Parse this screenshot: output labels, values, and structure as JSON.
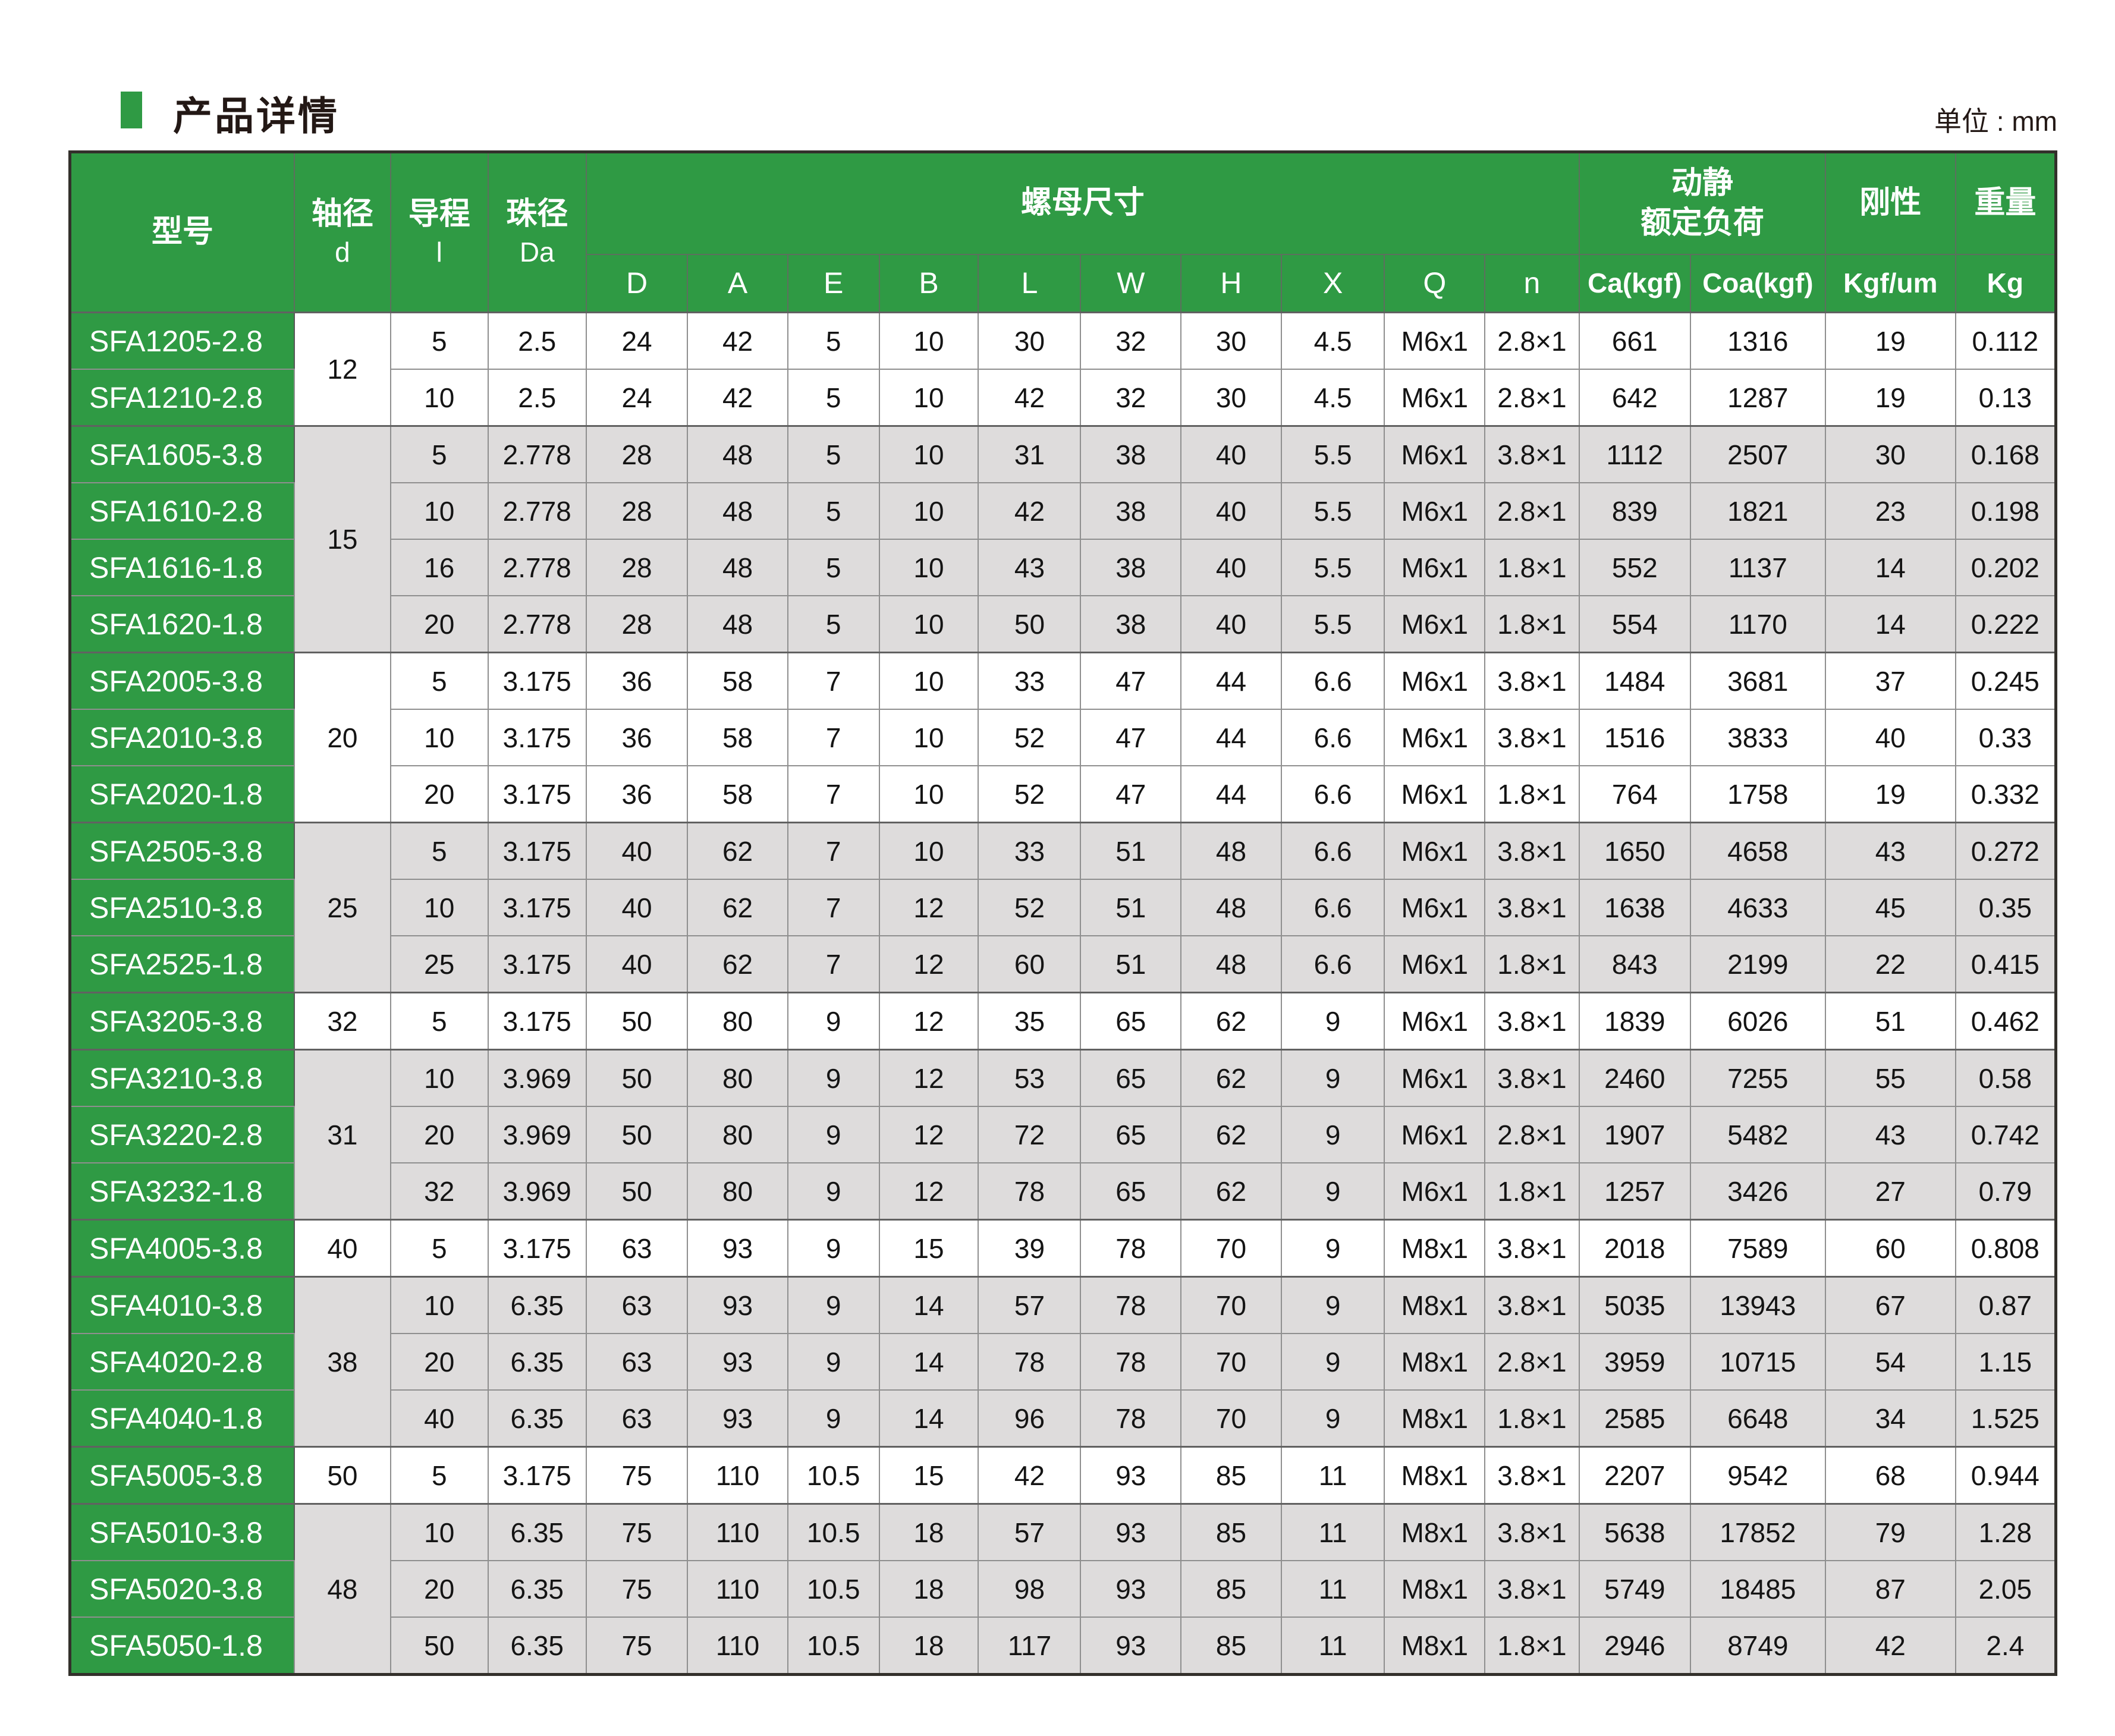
{
  "page": {
    "title": "产品详情",
    "unit_label": "单位 : mm"
  },
  "colors": {
    "brand_green": "#2f9a44",
    "row_gray": "#dedcdc",
    "row_white": "#ffffff",
    "outer_border": "#33302b",
    "grid_line": "#8f8f8f",
    "title_text": "#231815"
  },
  "table": {
    "headers": {
      "model": "型号",
      "shaft": {
        "line1": "轴径",
        "line2": "d"
      },
      "lead": {
        "line1": "导程",
        "line2": "l"
      },
      "ball": {
        "line1": "珠径",
        "line2": "Da"
      },
      "nut_group": "螺母尺寸",
      "nut_cols": [
        "D",
        "A",
        "E",
        "B",
        "L",
        "W",
        "H",
        "X",
        "Q",
        "n"
      ],
      "load_group": {
        "line1": "动静",
        "line2": "额定负荷"
      },
      "load_cols": [
        "Ca(kgf)",
        "Coa(kgf)"
      ],
      "rigidity": {
        "group": "刚性",
        "sub": "Kgf/um"
      },
      "weight": {
        "group": "重量",
        "sub": "Kg"
      }
    },
    "groups": [
      {
        "shaft_d": "12",
        "shade": "white",
        "rows": [
          {
            "model": "SFA1205-2.8",
            "lead": "5",
            "ball_dia": "2.5",
            "D": "24",
            "A": "42",
            "E": "5",
            "B": "10",
            "L": "30",
            "W": "32",
            "H": "30",
            "X": "4.5",
            "Q": "M6x1",
            "n": "2.8×1",
            "Ca": "661",
            "Coa": "1316",
            "rigidity": "19",
            "weight": "0.112"
          },
          {
            "model": "SFA1210-2.8",
            "lead": "10",
            "ball_dia": "2.5",
            "D": "24",
            "A": "42",
            "E": "5",
            "B": "10",
            "L": "42",
            "W": "32",
            "H": "30",
            "X": "4.5",
            "Q": "M6x1",
            "n": "2.8×1",
            "Ca": "642",
            "Coa": "1287",
            "rigidity": "19",
            "weight": "0.13"
          }
        ]
      },
      {
        "shaft_d": "15",
        "shade": "gray",
        "rows": [
          {
            "model": "SFA1605-3.8",
            "lead": "5",
            "ball_dia": "2.778",
            "D": "28",
            "A": "48",
            "E": "5",
            "B": "10",
            "L": "31",
            "W": "38",
            "H": "40",
            "X": "5.5",
            "Q": "M6x1",
            "n": "3.8×1",
            "Ca": "1112",
            "Coa": "2507",
            "rigidity": "30",
            "weight": "0.168"
          },
          {
            "model": "SFA1610-2.8",
            "lead": "10",
            "ball_dia": "2.778",
            "D": "28",
            "A": "48",
            "E": "5",
            "B": "10",
            "L": "42",
            "W": "38",
            "H": "40",
            "X": "5.5",
            "Q": "M6x1",
            "n": "2.8×1",
            "Ca": "839",
            "Coa": "1821",
            "rigidity": "23",
            "weight": "0.198"
          },
          {
            "model": "SFA1616-1.8",
            "lead": "16",
            "ball_dia": "2.778",
            "D": "28",
            "A": "48",
            "E": "5",
            "B": "10",
            "L": "43",
            "W": "38",
            "H": "40",
            "X": "5.5",
            "Q": "M6x1",
            "n": "1.8×1",
            "Ca": "552",
            "Coa": "1137",
            "rigidity": "14",
            "weight": "0.202"
          },
          {
            "model": "SFA1620-1.8",
            "lead": "20",
            "ball_dia": "2.778",
            "D": "28",
            "A": "48",
            "E": "5",
            "B": "10",
            "L": "50",
            "W": "38",
            "H": "40",
            "X": "5.5",
            "Q": "M6x1",
            "n": "1.8×1",
            "Ca": "554",
            "Coa": "1170",
            "rigidity": "14",
            "weight": "0.222"
          }
        ]
      },
      {
        "shaft_d": "20",
        "shade": "white",
        "rows": [
          {
            "model": "SFA2005-3.8",
            "lead": "5",
            "ball_dia": "3.175",
            "D": "36",
            "A": "58",
            "E": "7",
            "B": "10",
            "L": "33",
            "W": "47",
            "H": "44",
            "X": "6.6",
            "Q": "M6x1",
            "n": "3.8×1",
            "Ca": "1484",
            "Coa": "3681",
            "rigidity": "37",
            "weight": "0.245"
          },
          {
            "model": "SFA2010-3.8",
            "lead": "10",
            "ball_dia": "3.175",
            "D": "36",
            "A": "58",
            "E": "7",
            "B": "10",
            "L": "52",
            "W": "47",
            "H": "44",
            "X": "6.6",
            "Q": "M6x1",
            "n": "3.8×1",
            "Ca": "1516",
            "Coa": "3833",
            "rigidity": "40",
            "weight": "0.33"
          },
          {
            "model": "SFA2020-1.8",
            "lead": "20",
            "ball_dia": "3.175",
            "D": "36",
            "A": "58",
            "E": "7",
            "B": "10",
            "L": "52",
            "W": "47",
            "H": "44",
            "X": "6.6",
            "Q": "M6x1",
            "n": "1.8×1",
            "Ca": "764",
            "Coa": "1758",
            "rigidity": "19",
            "weight": "0.332"
          }
        ]
      },
      {
        "shaft_d": "25",
        "shade": "gray",
        "rows": [
          {
            "model": "SFA2505-3.8",
            "lead": "5",
            "ball_dia": "3.175",
            "D": "40",
            "A": "62",
            "E": "7",
            "B": "10",
            "L": "33",
            "W": "51",
            "H": "48",
            "X": "6.6",
            "Q": "M6x1",
            "n": "3.8×1",
            "Ca": "1650",
            "Coa": "4658",
            "rigidity": "43",
            "weight": "0.272"
          },
          {
            "model": "SFA2510-3.8",
            "lead": "10",
            "ball_dia": "3.175",
            "D": "40",
            "A": "62",
            "E": "7",
            "B": "12",
            "L": "52",
            "W": "51",
            "H": "48",
            "X": "6.6",
            "Q": "M6x1",
            "n": "3.8×1",
            "Ca": "1638",
            "Coa": "4633",
            "rigidity": "45",
            "weight": "0.35"
          },
          {
            "model": "SFA2525-1.8",
            "lead": "25",
            "ball_dia": "3.175",
            "D": "40",
            "A": "62",
            "E": "7",
            "B": "12",
            "L": "60",
            "W": "51",
            "H": "48",
            "X": "6.6",
            "Q": "M6x1",
            "n": "1.8×1",
            "Ca": "843",
            "Coa": "2199",
            "rigidity": "22",
            "weight": "0.415"
          }
        ]
      },
      {
        "shaft_d": "32",
        "shade": "white",
        "rows": [
          {
            "model": "SFA3205-3.8",
            "lead": "5",
            "ball_dia": "3.175",
            "D": "50",
            "A": "80",
            "E": "9",
            "B": "12",
            "L": "35",
            "W": "65",
            "H": "62",
            "X": "9",
            "Q": "M6x1",
            "n": "3.8×1",
            "Ca": "1839",
            "Coa": "6026",
            "rigidity": "51",
            "weight": "0.462"
          }
        ]
      },
      {
        "shaft_d": "31",
        "shade": "gray",
        "rows": [
          {
            "model": "SFA3210-3.8",
            "lead": "10",
            "ball_dia": "3.969",
            "D": "50",
            "A": "80",
            "E": "9",
            "B": "12",
            "L": "53",
            "W": "65",
            "H": "62",
            "X": "9",
            "Q": "M6x1",
            "n": "3.8×1",
            "Ca": "2460",
            "Coa": "7255",
            "rigidity": "55",
            "weight": "0.58"
          },
          {
            "model": "SFA3220-2.8",
            "lead": "20",
            "ball_dia": "3.969",
            "D": "50",
            "A": "80",
            "E": "9",
            "B": "12",
            "L": "72",
            "W": "65",
            "H": "62",
            "X": "9",
            "Q": "M6x1",
            "n": "2.8×1",
            "Ca": "1907",
            "Coa": "5482",
            "rigidity": "43",
            "weight": "0.742"
          },
          {
            "model": "SFA3232-1.8",
            "lead": "32",
            "ball_dia": "3.969",
            "D": "50",
            "A": "80",
            "E": "9",
            "B": "12",
            "L": "78",
            "W": "65",
            "H": "62",
            "X": "9",
            "Q": "M6x1",
            "n": "1.8×1",
            "Ca": "1257",
            "Coa": "3426",
            "rigidity": "27",
            "weight": "0.79"
          }
        ]
      },
      {
        "shaft_d": "40",
        "shade": "white",
        "rows": [
          {
            "model": "SFA4005-3.8",
            "lead": "5",
            "ball_dia": "3.175",
            "D": "63",
            "A": "93",
            "E": "9",
            "B": "15",
            "L": "39",
            "W": "78",
            "H": "70",
            "X": "9",
            "Q": "M8x1",
            "n": "3.8×1",
            "Ca": "2018",
            "Coa": "7589",
            "rigidity": "60",
            "weight": "0.808"
          }
        ]
      },
      {
        "shaft_d": "38",
        "shade": "gray",
        "rows": [
          {
            "model": "SFA4010-3.8",
            "lead": "10",
            "ball_dia": "6.35",
            "D": "63",
            "A": "93",
            "E": "9",
            "B": "14",
            "L": "57",
            "W": "78",
            "H": "70",
            "X": "9",
            "Q": "M8x1",
            "n": "3.8×1",
            "Ca": "5035",
            "Coa": "13943",
            "rigidity": "67",
            "weight": "0.87"
          },
          {
            "model": "SFA4020-2.8",
            "lead": "20",
            "ball_dia": "6.35",
            "D": "63",
            "A": "93",
            "E": "9",
            "B": "14",
            "L": "78",
            "W": "78",
            "H": "70",
            "X": "9",
            "Q": "M8x1",
            "n": "2.8×1",
            "Ca": "3959",
            "Coa": "10715",
            "rigidity": "54",
            "weight": "1.15"
          },
          {
            "model": "SFA4040-1.8",
            "lead": "40",
            "ball_dia": "6.35",
            "D": "63",
            "A": "93",
            "E": "9",
            "B": "14",
            "L": "96",
            "W": "78",
            "H": "70",
            "X": "9",
            "Q": "M8x1",
            "n": "1.8×1",
            "Ca": "2585",
            "Coa": "6648",
            "rigidity": "34",
            "weight": "1.525"
          }
        ]
      },
      {
        "shaft_d": "50",
        "shade": "white",
        "rows": [
          {
            "model": "SFA5005-3.8",
            "lead": "5",
            "ball_dia": "3.175",
            "D": "75",
            "A": "110",
            "E": "10.5",
            "B": "15",
            "L": "42",
            "W": "93",
            "H": "85",
            "X": "11",
            "Q": "M8x1",
            "n": "3.8×1",
            "Ca": "2207",
            "Coa": "9542",
            "rigidity": "68",
            "weight": "0.944"
          }
        ]
      },
      {
        "shaft_d": "48",
        "shade": "gray",
        "rows": [
          {
            "model": "SFA5010-3.8",
            "lead": "10",
            "ball_dia": "6.35",
            "D": "75",
            "A": "110",
            "E": "10.5",
            "B": "18",
            "L": "57",
            "W": "93",
            "H": "85",
            "X": "11",
            "Q": "M8x1",
            "n": "3.8×1",
            "Ca": "5638",
            "Coa": "17852",
            "rigidity": "79",
            "weight": "1.28"
          },
          {
            "model": "SFA5020-3.8",
            "lead": "20",
            "ball_dia": "6.35",
            "D": "75",
            "A": "110",
            "E": "10.5",
            "B": "18",
            "L": "98",
            "W": "93",
            "H": "85",
            "X": "11",
            "Q": "M8x1",
            "n": "3.8×1",
            "Ca": "5749",
            "Coa": "18485",
            "rigidity": "87",
            "weight": "2.05"
          },
          {
            "model": "SFA5050-1.8",
            "lead": "50",
            "ball_dia": "6.35",
            "D": "75",
            "A": "110",
            "E": "10.5",
            "B": "18",
            "L": "117",
            "W": "93",
            "H": "85",
            "X": "11",
            "Q": "M8x1",
            "n": "1.8×1",
            "Ca": "2946",
            "Coa": "8749",
            "rigidity": "42",
            "weight": "2.4"
          }
        ]
      }
    ]
  }
}
